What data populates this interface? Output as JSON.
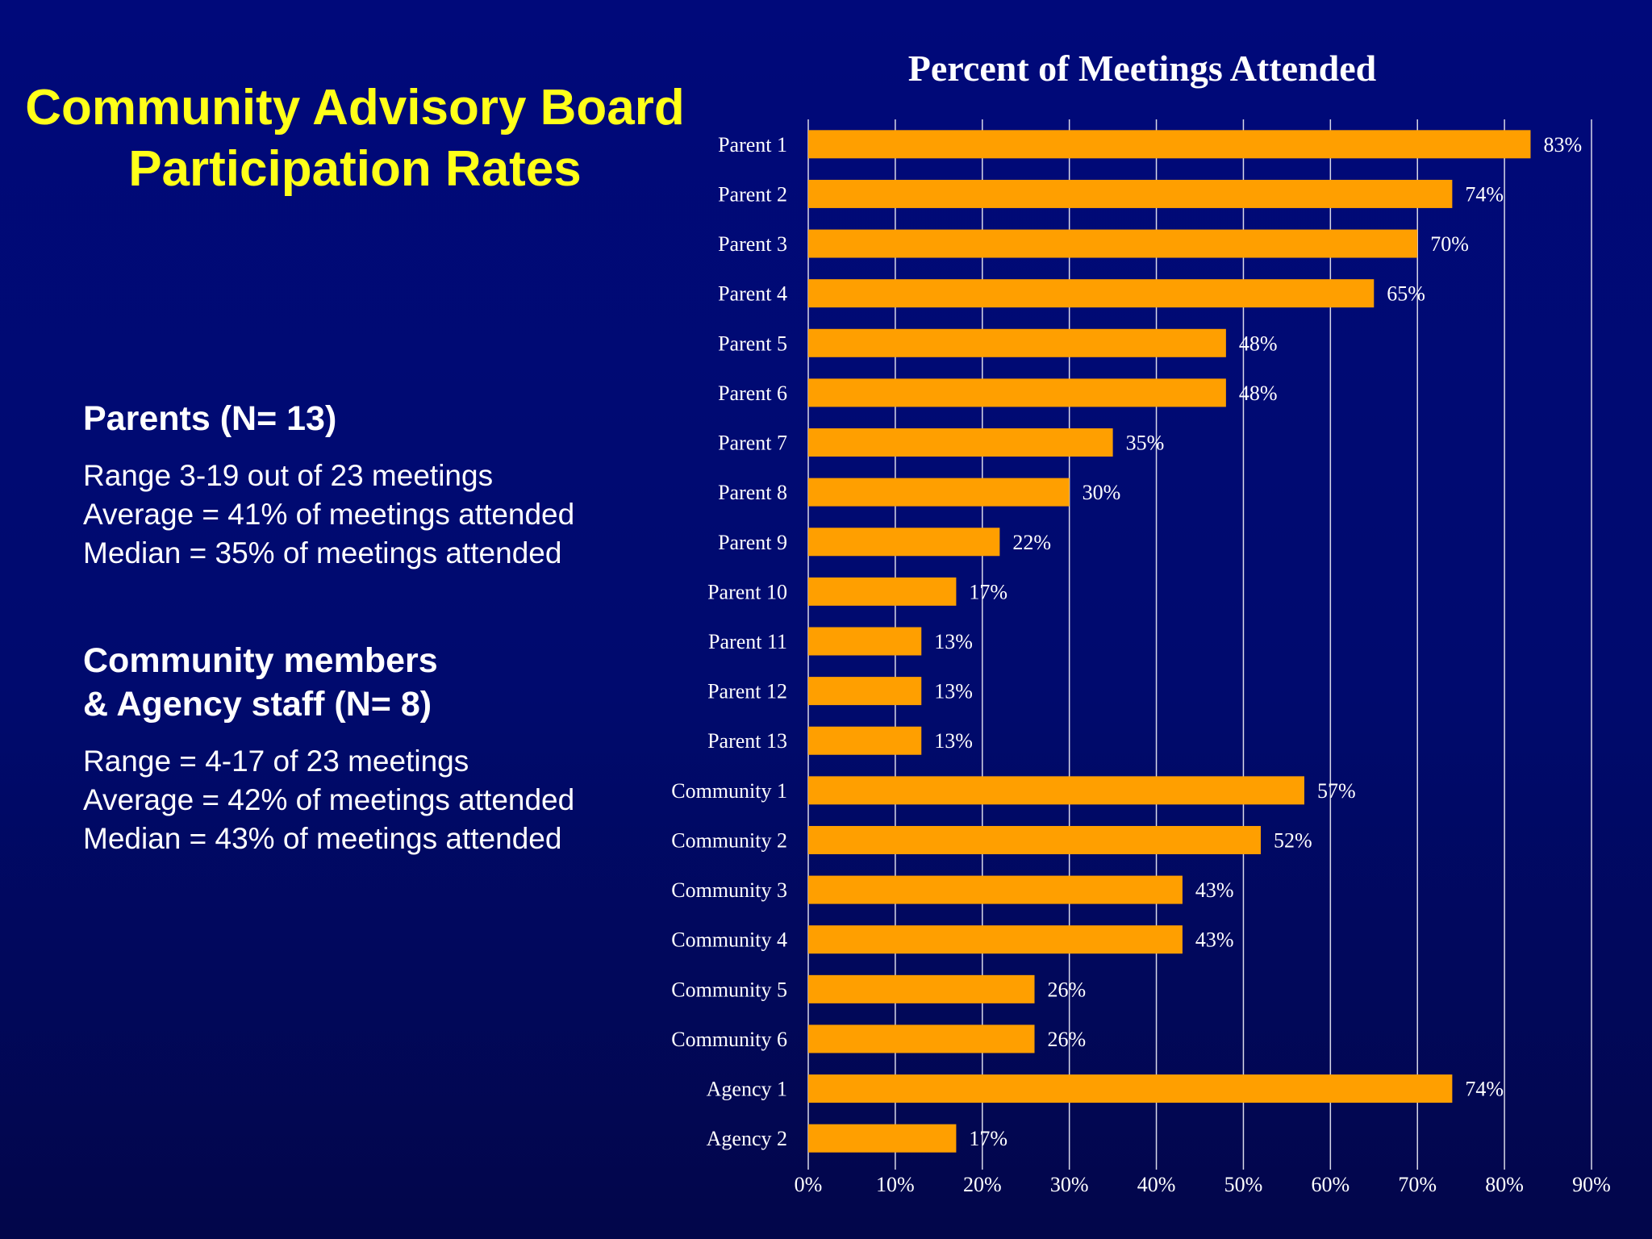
{
  "slide": {
    "title_line1": "Community Advisory Board",
    "title_line2": "Participation Rates"
  },
  "parents": {
    "heading": "Parents (N= 13)",
    "lines": [
      "Range 3-19 out of 23 meetings",
      "Average = 41% of meetings attended",
      "Median = 35% of meetings attended"
    ]
  },
  "community": {
    "heading_line1": "Community members",
    "heading_line2": "& Agency staff (N= 8)",
    "lines": [
      "Range = 4-17 of 23 meetings",
      "Average = 42% of meetings attended",
      "Median = 43% of meetings attended"
    ]
  },
  "colors": {
    "title": "#ffff19",
    "bar": "#ff9f00",
    "text": "#ffffff",
    "grid": "#d8d8e8"
  },
  "chart_data": {
    "type": "bar",
    "orientation": "horizontal",
    "title": "Percent of Meetings Attended",
    "categories": [
      "Parent 1",
      "Parent 2",
      "Parent 3",
      "Parent 4",
      "Parent 5",
      "Parent 6",
      "Parent 7",
      "Parent 8",
      "Parent 9",
      "Parent 10",
      "Parent 11",
      "Parent 12",
      "Parent 13",
      "Community 1",
      "Community 2",
      "Community 3",
      "Community 4",
      "Community 5",
      "Community 6",
      "Agency 1",
      "Agency 2"
    ],
    "values": [
      83,
      74,
      70,
      65,
      48,
      48,
      35,
      30,
      22,
      17,
      13,
      13,
      13,
      57,
      52,
      43,
      43,
      26,
      26,
      74,
      17
    ],
    "value_labels": [
      "83%",
      "74%",
      "70%",
      "65%",
      "48%",
      "48%",
      "35%",
      "30%",
      "22%",
      "17%",
      "13%",
      "13%",
      "13%",
      "57%",
      "52%",
      "43%",
      "43%",
      "26%",
      "26%",
      "74%",
      "17%"
    ],
    "x_ticks": [
      "0%",
      "10%",
      "20%",
      "30%",
      "40%",
      "50%",
      "60%",
      "70%",
      "80%",
      "90%"
    ],
    "xlim": [
      0,
      90
    ],
    "grid": "vertical",
    "legend": "none"
  }
}
